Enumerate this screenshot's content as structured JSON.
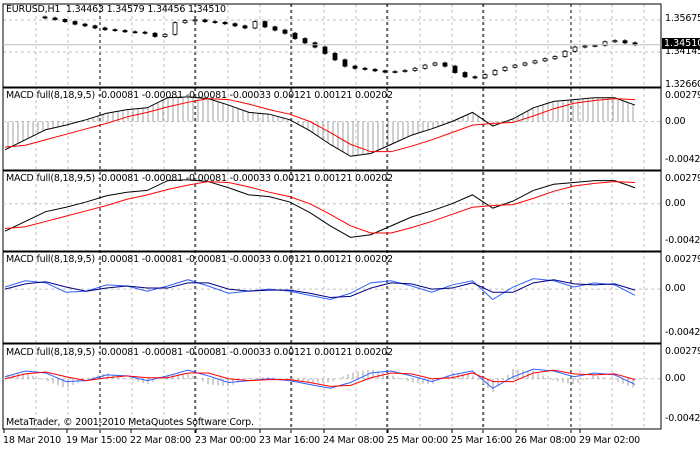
{
  "header": {
    "symbol": "EURUSD,H1",
    "ohlc": "1.34463 1.34579 1.34456 1.34510"
  },
  "price_axis": {
    "labels": [
      "1.35675",
      "1.34145",
      "1.32660"
    ],
    "current": "1.34510",
    "max": 1.35675,
    "min": 1.3266
  },
  "indicators": [
    {
      "label": "MACD full(8,18,9,5)",
      "values": "-0.00081 -0.00081 -0.00081 -0.00033 0.00121 0.00121 0.00202",
      "axis": [
        "0.00279",
        "0.00",
        "-0.00421"
      ]
    },
    {
      "label": "MACD full(8,18,9,5)",
      "values": "-0.00081 -0.00081 -0.00081 -0.00033 0.00121 0.00121 0.00202",
      "axis": [
        "0.00279",
        "0.00",
        "-0.00421"
      ]
    },
    {
      "label": "MACD full(8,18,9,5)",
      "values": "-0.00081 -0.00081 -0.00081 -0.00033 0.00121 0.00121 0.00202",
      "axis": [
        "0.00279",
        "0.00",
        "-0.00421"
      ]
    },
    {
      "label": "MACD full(8,18,9,5)",
      "values": "-0.00081 -0.00081 -0.00081 -0.00033 0.00121 0.00121 0.00202",
      "axis": [
        "0.00279",
        "0.00",
        "-0.00421"
      ]
    }
  ],
  "time_axis": [
    "18 Mar 2010",
    "19 Mar 15:00",
    "22 Mar 08:00",
    "23 Mar 00:00",
    "23 Mar 16:00",
    "24 Mar 08:00",
    "25 Mar 00:00",
    "25 Mar 16:00",
    "26 Mar 08:00",
    "29 Mar 02:00"
  ],
  "copyright": "MetaTrader, © 2001-2010 MetaQuotes Software Corp.",
  "colors": {
    "signal": "#ff0000",
    "macd": "#000000",
    "blue": "#3060ff",
    "navy": "#000080",
    "hist": "#a0a0a0",
    "grid": "#c0c0c0"
  },
  "chart_data": {
    "type": "candlestick+line",
    "closes": [
      1.3577,
      1.357,
      1.356,
      1.3548,
      1.354,
      1.353,
      1.3522,
      1.3518,
      1.3512,
      1.351,
      1.3505,
      1.349,
      1.35,
      1.3555,
      1.3565,
      1.3568,
      1.356,
      1.3556,
      1.355,
      1.354,
      1.353,
      1.356,
      1.3535,
      1.352,
      1.3505,
      1.348,
      1.346,
      1.344,
      1.341,
      1.338,
      1.335,
      1.334,
      1.3335,
      1.3328,
      1.3322,
      1.3325,
      1.333,
      1.334,
      1.3355,
      1.3365,
      1.335,
      1.332,
      1.33,
      1.3295,
      1.331,
      1.333,
      1.3345,
      1.3355,
      1.3365,
      1.3375,
      1.3385,
      1.3395,
      1.342,
      1.344,
      1.3445,
      1.3448,
      1.3465,
      1.347,
      1.346,
      1.3451
    ],
    "macd": [
      -0.0031,
      -0.002,
      -0.0009,
      -0.0004,
      0.0002,
      0.0009,
      0.0013,
      0.0015,
      0.0026,
      0.0027,
      0.0025,
      0.0018,
      0.001,
      0.0008,
      0.0002,
      -0.001,
      -0.0025,
      -0.0038,
      -0.0035,
      -0.0025,
      -0.0015,
      -0.0008,
      0.0,
      0.001,
      -0.0005,
      0.0003,
      0.0015,
      0.0022,
      0.0024,
      0.0026,
      0.0026,
      0.0018
    ],
    "signal": [
      -0.0028,
      -0.0026,
      -0.002,
      -0.0014,
      -0.0008,
      -0.0002,
      0.0005,
      0.001,
      0.0016,
      0.0021,
      0.0025,
      0.0024,
      0.0019,
      0.0013,
      0.0008,
      0.0,
      -0.0012,
      -0.0025,
      -0.0033,
      -0.0033,
      -0.0027,
      -0.002,
      -0.0012,
      -0.0004,
      -0.0002,
      -0.0001,
      0.0006,
      0.0014,
      0.002,
      0.0023,
      0.0025,
      0.0024
    ],
    "fast": [
      0.0002,
      0.0008,
      0.0006,
      -0.0003,
      -0.0002,
      0.0004,
      0.0003,
      -0.0002,
      0.0003,
      0.0009,
      0.0003,
      -0.0004,
      -0.0002,
      0.0,
      -0.0002,
      -0.0006,
      -0.001,
      -0.0004,
      0.0006,
      0.0008,
      0.0003,
      -0.0003,
      0.0004,
      0.0008,
      -0.001,
      0.0002,
      0.001,
      0.0008,
      0.0002,
      0.0006,
      0.0004,
      -0.0006
    ],
    "slow": [
      0.0,
      0.0005,
      0.0007,
      0.0002,
      -0.0002,
      0.0001,
      0.0003,
      0.0001,
      0.0001,
      0.0006,
      0.0006,
      0.0,
      -0.0002,
      -0.0001,
      -0.0001,
      -0.0004,
      -0.0008,
      -0.0007,
      0.0001,
      0.0006,
      0.0005,
      0.0,
      0.0001,
      0.0006,
      -0.0003,
      -0.0003,
      0.0006,
      0.0009,
      0.0005,
      0.0004,
      0.0005,
      -0.0001
    ],
    "value_range": [
      -0.00421,
      0.00279
    ]
  }
}
